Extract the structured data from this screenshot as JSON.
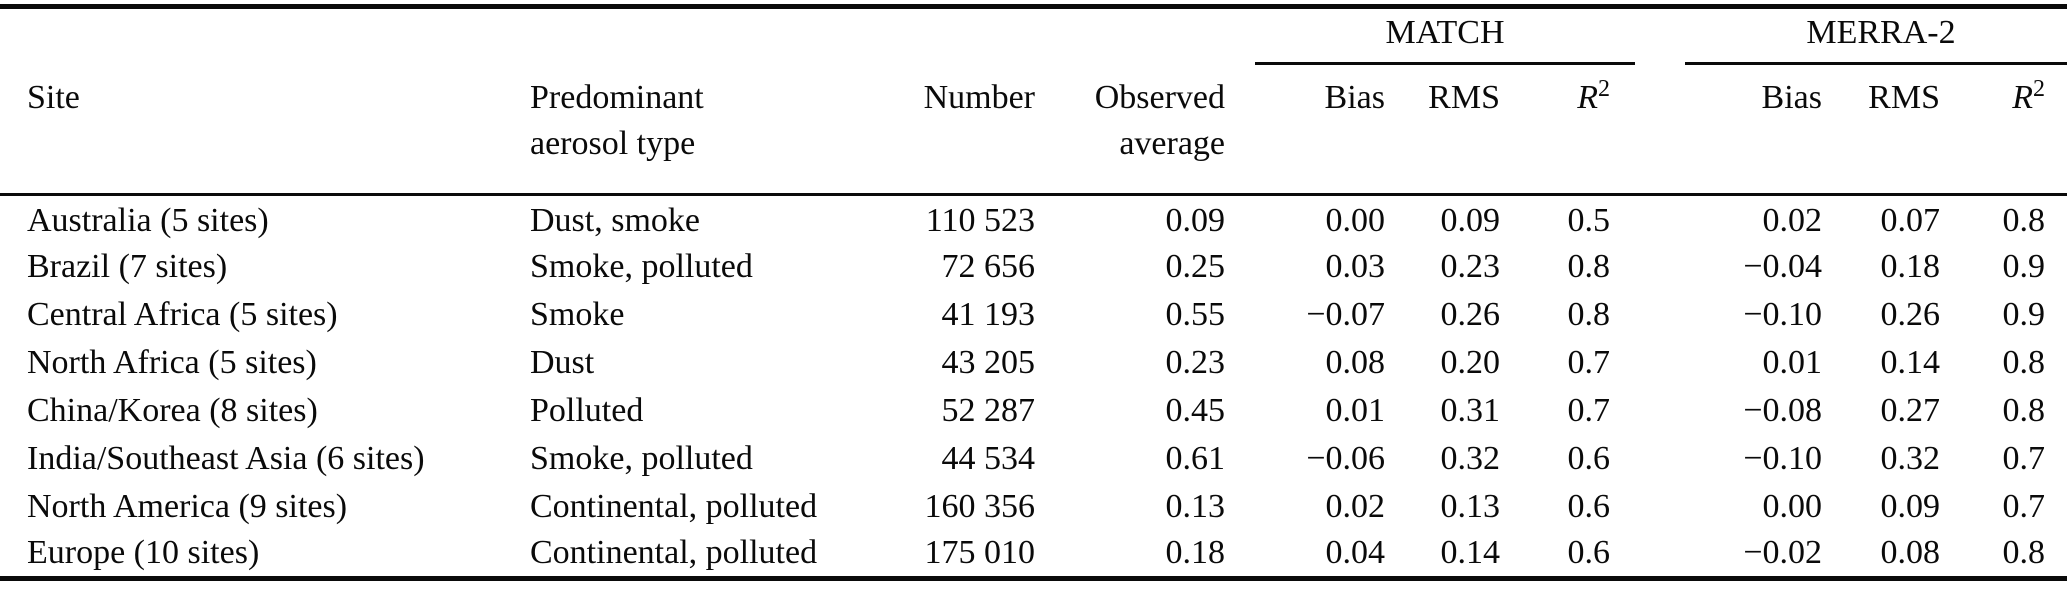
{
  "table": {
    "groups": {
      "match": "MATCH",
      "merra2": "MERRA-2"
    },
    "columns": {
      "site": "Site",
      "aerosol_line1": "Predominant",
      "aerosol_line2": "aerosol type",
      "number": "Number",
      "observed_line1": "Observed",
      "observed_line2": "average",
      "bias": "Bias",
      "rms": "RMS",
      "r2_base": "R",
      "r2_sup": "2"
    },
    "rows": [
      {
        "site": "Australia (5 sites)",
        "aerosol": "Dust, smoke",
        "number": "110 523",
        "observed": "0.09",
        "match": {
          "bias": "0.00",
          "rms": "0.09",
          "r2": "0.5"
        },
        "merra2": {
          "bias": "0.02",
          "rms": "0.07",
          "r2": "0.8"
        }
      },
      {
        "site": "Brazil (7 sites)",
        "aerosol": "Smoke, polluted",
        "number": "72 656",
        "observed": "0.25",
        "match": {
          "bias": "0.03",
          "rms": "0.23",
          "r2": "0.8"
        },
        "merra2": {
          "bias": "−0.04",
          "rms": "0.18",
          "r2": "0.9"
        }
      },
      {
        "site": "Central Africa (5 sites)",
        "aerosol": "Smoke",
        "number": "41 193",
        "observed": "0.55",
        "match": {
          "bias": "−0.07",
          "rms": "0.26",
          "r2": "0.8"
        },
        "merra2": {
          "bias": "−0.10",
          "rms": "0.26",
          "r2": "0.9"
        }
      },
      {
        "site": "North Africa (5 sites)",
        "aerosol": "Dust",
        "number": "43 205",
        "observed": "0.23",
        "match": {
          "bias": "0.08",
          "rms": "0.20",
          "r2": "0.7"
        },
        "merra2": {
          "bias": "0.01",
          "rms": "0.14",
          "r2": "0.8"
        }
      },
      {
        "site": "China/Korea (8 sites)",
        "aerosol": "Polluted",
        "number": "52 287",
        "observed": "0.45",
        "match": {
          "bias": "0.01",
          "rms": "0.31",
          "r2": "0.7"
        },
        "merra2": {
          "bias": "−0.08",
          "rms": "0.27",
          "r2": "0.8"
        }
      },
      {
        "site": "India/Southeast Asia (6 sites)",
        "aerosol": "Smoke, polluted",
        "number": "44 534",
        "observed": "0.61",
        "match": {
          "bias": "−0.06",
          "rms": "0.32",
          "r2": "0.6"
        },
        "merra2": {
          "bias": "−0.10",
          "rms": "0.32",
          "r2": "0.7"
        }
      },
      {
        "site": "North America (9 sites)",
        "aerosol": "Continental, polluted",
        "number": "160 356",
        "observed": "0.13",
        "match": {
          "bias": "0.02",
          "rms": "0.13",
          "r2": "0.6"
        },
        "merra2": {
          "bias": "0.00",
          "rms": "0.09",
          "r2": "0.7"
        }
      },
      {
        "site": "Europe (10 sites)",
        "aerosol": "Continental, polluted",
        "number": "175 010",
        "observed": "0.18",
        "match": {
          "bias": "0.04",
          "rms": "0.14",
          "r2": "0.6"
        },
        "merra2": {
          "bias": "−0.02",
          "rms": "0.08",
          "r2": "0.8"
        }
      }
    ]
  }
}
